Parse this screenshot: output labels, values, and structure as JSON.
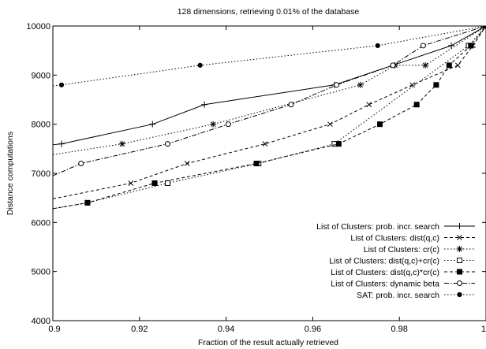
{
  "chart_data": {
    "type": "line",
    "title": "128 dimensions, retrieving 0.01% of the database",
    "xlabel": "Fraction of the result actually retrieved",
    "ylabel": "Distance computations",
    "xlim": [
      0.9,
      1.0
    ],
    "ylim": [
      4000,
      10000
    ],
    "xticks": [
      0.9,
      0.92,
      0.94,
      0.96,
      0.98,
      1.0
    ],
    "xtick_labels": [
      "0.9",
      "0.92",
      "0.94",
      "0.96",
      "0.98",
      "1"
    ],
    "yticks": [
      4000,
      5000,
      6000,
      7000,
      8000,
      9000,
      10000
    ],
    "ytick_labels": [
      "4000",
      "5000",
      "6000",
      "7000",
      "8000",
      "9000",
      "10000"
    ],
    "grid": false,
    "legend_position": "bottom-right",
    "series": [
      {
        "name": "List of Clusters: prob. incr. search",
        "marker": "plus",
        "dash": "solid",
        "x": [
          0.9,
          0.902,
          0.923,
          0.935,
          0.965,
          0.992,
          1.0
        ],
        "y": [
          7580,
          7600,
          8000,
          8400,
          8800,
          9600,
          10000
        ],
        "marker_x": [
          0.902,
          0.923,
          0.935,
          0.965,
          0.992,
          1.0
        ]
      },
      {
        "name": "List of Clusters: dist(q,c)",
        "marker": "cross",
        "dash": "dashed",
        "x": [
          0.9,
          0.918,
          0.931,
          0.949,
          0.964,
          0.973,
          0.983,
          0.9935,
          0.997,
          1.0
        ],
        "y": [
          6480,
          6800,
          7200,
          7600,
          8000,
          8400,
          8800,
          9200,
          9600,
          10000
        ],
        "marker_x": [
          0.918,
          0.931,
          0.949,
          0.964,
          0.973,
          0.983,
          0.9935,
          0.997,
          1.0
        ]
      },
      {
        "name": "List of Clusters: cr(c)",
        "marker": "star",
        "dash": "dotted",
        "x": [
          0.9,
          0.916,
          0.937,
          0.971,
          0.979,
          0.986,
          1.0
        ],
        "y": [
          7380,
          7600,
          8000,
          8800,
          9200,
          9200,
          10000
        ],
        "marker_x": [
          0.916,
          0.937,
          0.971,
          0.979,
          0.986,
          1.0
        ]
      },
      {
        "name": "List of Clusters: dist(q,c)+cr(c)",
        "marker": "square-open",
        "dash": "dotted",
        "x": [
          0.9,
          0.908,
          0.9265,
          0.9475,
          0.965,
          0.996,
          1.0
        ],
        "y": [
          6280,
          6400,
          6800,
          7200,
          7600,
          9600,
          10000
        ],
        "marker_x": [
          0.908,
          0.9265,
          0.9475,
          0.965,
          0.996,
          1.0
        ]
      },
      {
        "name": "List of Clusters: dist(q,c)*cr(c)",
        "marker": "square-filled",
        "dash": "dashed",
        "x": [
          0.9,
          0.908,
          0.9235,
          0.947,
          0.966,
          0.9755,
          0.984,
          0.9885,
          0.9915,
          0.9965,
          1.0
        ],
        "y": [
          6280,
          6400,
          6800,
          7200,
          7600,
          8000,
          8400,
          8800,
          9200,
          9600,
          10000
        ],
        "marker_x": [
          0.908,
          0.9235,
          0.947,
          0.966,
          0.9755,
          0.984,
          0.9885,
          0.9915,
          0.9965,
          1.0
        ]
      },
      {
        "name": "List of Clusters: dynamic beta",
        "marker": "circle-open",
        "dash": "dashdot",
        "x": [
          0.9,
          0.9065,
          0.9265,
          0.9405,
          0.955,
          0.9655,
          0.9785,
          0.9855,
          1.0
        ],
        "y": [
          6950,
          7200,
          7600,
          8000,
          8400,
          8800,
          9200,
          9600,
          10000
        ],
        "marker_x": [
          0.9065,
          0.9265,
          0.9405,
          0.955,
          0.9655,
          0.9785,
          0.9855,
          1.0
        ]
      },
      {
        "name": "SAT: prob. incr. search",
        "marker": "circle-filled",
        "dash": "dotted",
        "x": [
          0.9,
          0.902,
          0.934,
          0.975,
          1.0
        ],
        "y": [
          8780,
          8800,
          9200,
          9600,
          10000
        ],
        "marker_x": [
          0.902,
          0.934,
          0.975,
          1.0
        ]
      }
    ]
  }
}
